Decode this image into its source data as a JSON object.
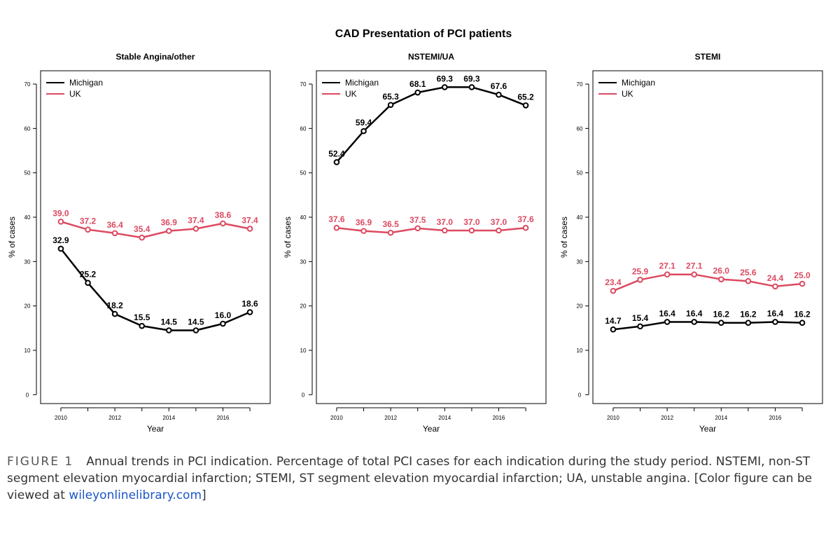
{
  "figure_title": "CAD Presentation of PCI patients",
  "colors": {
    "michigan": "#000000",
    "uk": "#dc4a62",
    "link": "#1a56c8"
  },
  "caption": {
    "label": "FIGURE 1",
    "text": "Annual trends in PCI indication. Percentage of total PCI cases for each indication during the study period. NSTEMI, non-ST segment elevation myocardial infarction; STEMI, ST segment elevation myocardial infarction; UA, unstable angina. [Color figure can be viewed at ",
    "link": "wileyonlinelibrary.com",
    "end": "]"
  },
  "chart_data": [
    {
      "type": "line",
      "title": "Stable Angina/other",
      "xlabel": "Year",
      "ylabel": "% of cases",
      "x": [
        2010,
        2011,
        2012,
        2013,
        2014,
        2015,
        2016,
        2017
      ],
      "xticks": [
        2010,
        2012,
        2014,
        2016
      ],
      "yticks": [
        0,
        10,
        20,
        30,
        40,
        50,
        60,
        70
      ],
      "xlim": [
        2009.25,
        2017.75
      ],
      "ylim": [
        -2,
        73
      ],
      "legend": [
        "Michigan",
        "UK"
      ],
      "legend_position": "top-left",
      "series": [
        {
          "name": "Michigan",
          "values": [
            32.9,
            25.2,
            18.2,
            15.5,
            14.5,
            14.5,
            16.0,
            18.6
          ],
          "labels": [
            "32.9",
            "25.2",
            "18.2",
            "15.5",
            "14.5",
            "14.5",
            "16.0",
            "18.6"
          ]
        },
        {
          "name": "UK",
          "values": [
            39.0,
            37.2,
            36.4,
            35.4,
            36.9,
            37.4,
            38.6,
            37.4
          ],
          "labels": [
            "39.0",
            "37.2",
            "36.4",
            "35.4",
            "36.9",
            "37.4",
            "38.6",
            "37.4"
          ]
        }
      ]
    },
    {
      "type": "line",
      "title": "NSTEMI/UA",
      "xlabel": "Year",
      "ylabel": "% of cases",
      "x": [
        2010,
        2011,
        2012,
        2013,
        2014,
        2015,
        2016,
        2017
      ],
      "xticks": [
        2010,
        2012,
        2014,
        2016
      ],
      "yticks": [
        0,
        10,
        20,
        30,
        40,
        50,
        60,
        70
      ],
      "xlim": [
        2009.25,
        2017.75
      ],
      "ylim": [
        -2,
        73
      ],
      "legend": [
        "Michigan",
        "UK"
      ],
      "legend_position": "top-left",
      "series": [
        {
          "name": "Michigan",
          "values": [
            52.4,
            59.4,
            65.3,
            68.1,
            69.3,
            69.3,
            67.6,
            65.2
          ],
          "labels": [
            "52.4",
            "59.4",
            "65.3",
            "68.1",
            "69.3",
            "69.3",
            "67.6",
            "65.2"
          ]
        },
        {
          "name": "UK",
          "values": [
            37.6,
            36.9,
            36.5,
            37.5,
            37.0,
            37.0,
            37.0,
            37.6
          ],
          "labels": [
            "37.6",
            "36.9",
            "36.5",
            "37.5",
            "37.0",
            "37.0",
            "37.0",
            "37.6"
          ]
        }
      ]
    },
    {
      "type": "line",
      "title": "STEMI",
      "xlabel": "Year",
      "ylabel": "% of cases",
      "x": [
        2010,
        2011,
        2012,
        2013,
        2014,
        2015,
        2016,
        2017
      ],
      "xticks": [
        2010,
        2012,
        2014,
        2016
      ],
      "yticks": [
        0,
        10,
        20,
        30,
        40,
        50,
        60,
        70
      ],
      "xlim": [
        2009.25,
        2017.75
      ],
      "ylim": [
        -2,
        73
      ],
      "legend": [
        "Michigan",
        "UK"
      ],
      "legend_position": "top-left",
      "series": [
        {
          "name": "Michigan",
          "values": [
            14.7,
            15.4,
            16.4,
            16.4,
            16.2,
            16.2,
            16.4,
            16.2
          ],
          "labels": [
            "14.7",
            "15.4",
            "16.4",
            "16.4",
            "16.2",
            "16.2",
            "16.4",
            "16.2"
          ]
        },
        {
          "name": "UK",
          "values": [
            23.4,
            25.9,
            27.1,
            27.1,
            26.0,
            25.6,
            24.4,
            25.0
          ],
          "labels": [
            "23.4",
            "25.9",
            "27.1",
            "27.1",
            "26.0",
            "25.6",
            "24.4",
            "25.0"
          ]
        }
      ]
    }
  ]
}
